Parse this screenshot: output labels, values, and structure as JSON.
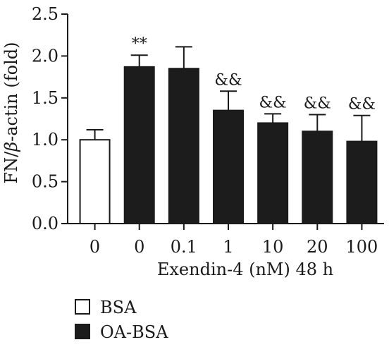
{
  "chart_data": {
    "type": "bar",
    "ylabel_prefix": "FN/",
    "ylabel_greek": "β",
    "ylabel_suffix": "-actin (fold)",
    "xlabel": "Exendin-4 (nM) 48 h",
    "ylim": [
      0,
      2.5
    ],
    "yticks": [
      "0.0",
      "0.5",
      "1.0",
      "1.5",
      "2.0",
      "2.5"
    ],
    "categories": [
      "0",
      "0",
      "0.1",
      "1",
      "10",
      "20",
      "100"
    ],
    "values": [
      1.0,
      1.87,
      1.85,
      1.35,
      1.2,
      1.1,
      0.98
    ],
    "errors": [
      0.12,
      0.14,
      0.26,
      0.23,
      0.11,
      0.2,
      0.31
    ],
    "groups": [
      "BSA",
      "OA-BSA",
      "OA-BSA",
      "OA-BSA",
      "OA-BSA",
      "OA-BSA",
      "OA-BSA"
    ],
    "annotations": [
      "",
      "**",
      "",
      "&&",
      "&&",
      "&&",
      "&&"
    ],
    "legend": [
      {
        "label": "BSA",
        "fill": "#ffffff"
      },
      {
        "label": "OA-BSA",
        "fill": "#1c1c1c"
      }
    ],
    "colors": {
      "bar_dark": "#1c1c1c",
      "bar_light": "#ffffff",
      "axis": "#1a1a1a"
    }
  }
}
